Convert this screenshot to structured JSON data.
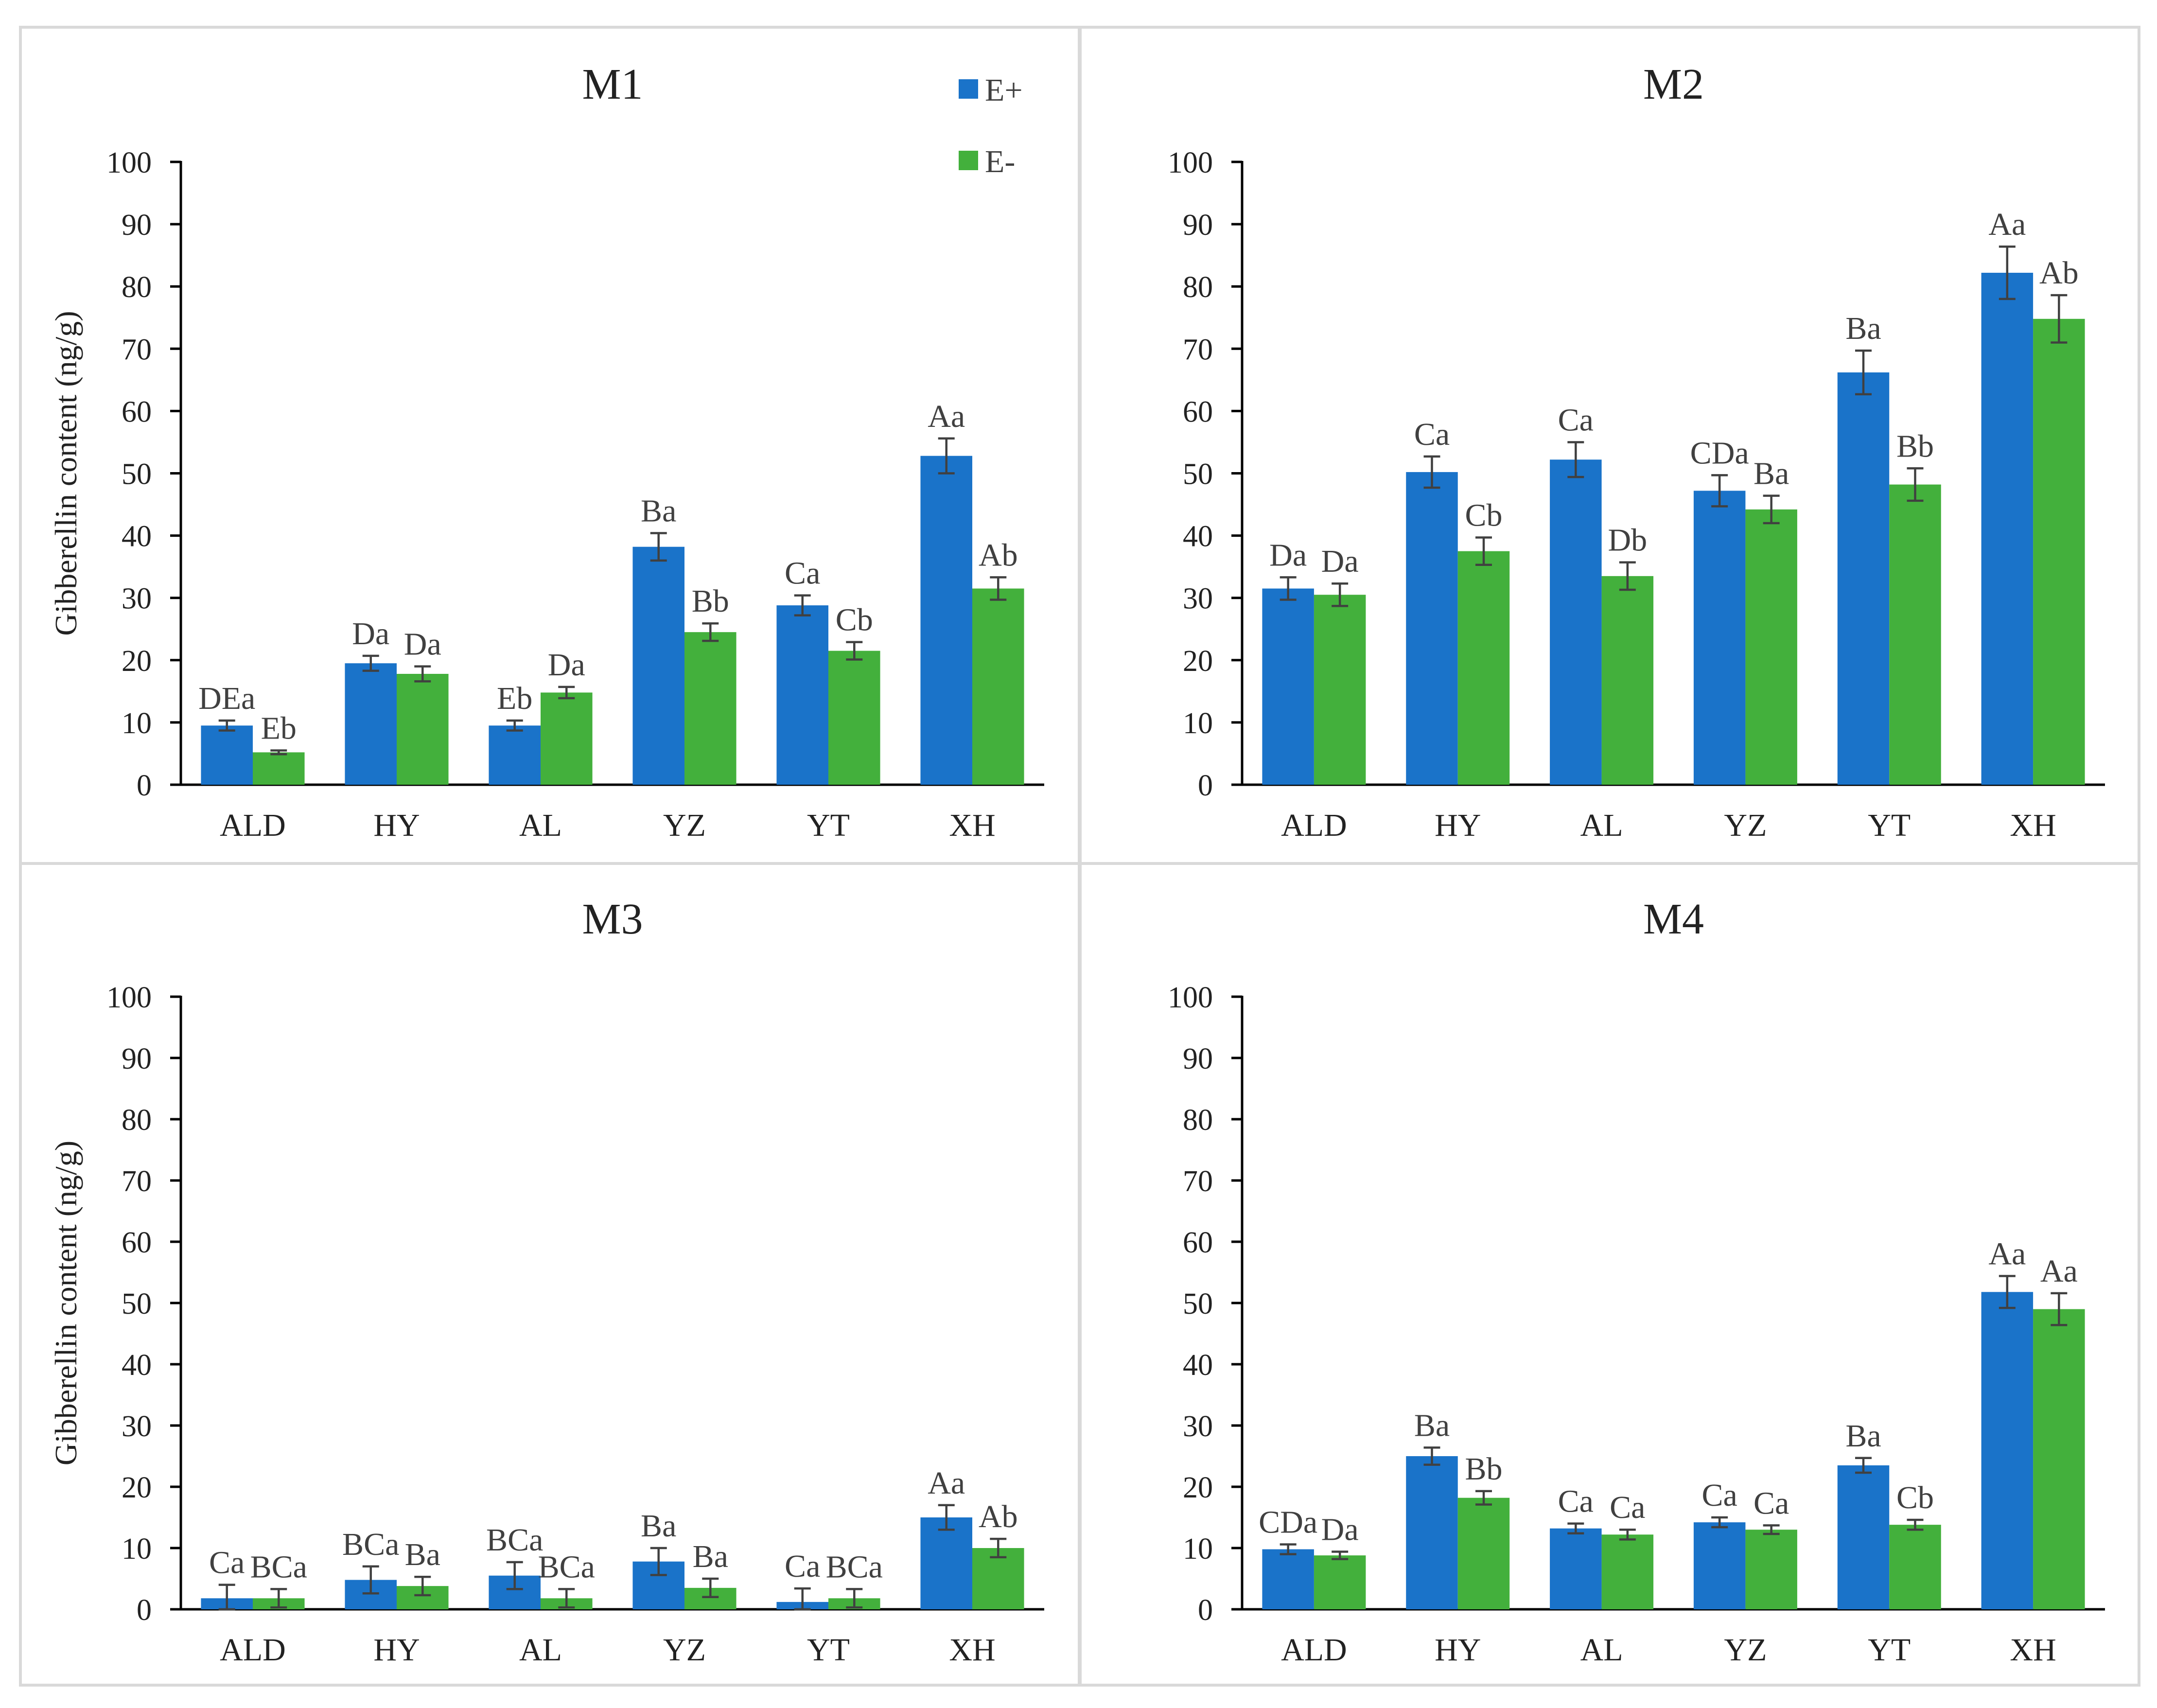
{
  "colors": {
    "E_plus": "#1a73c9",
    "E_minus": "#43b03c"
  },
  "legend": [
    {
      "label": "E+",
      "color": "#1a73c9"
    },
    {
      "label": "E-",
      "color": "#43b03c"
    }
  ],
  "chart_data": [
    {
      "type": "bar",
      "title": "M1",
      "ylabel": "Gibberellin content (ng/g)",
      "xlabel": "",
      "ylim": [
        0,
        100
      ],
      "yticks": [
        0,
        10,
        20,
        30,
        40,
        50,
        60,
        70,
        80,
        90,
        100
      ],
      "categories": [
        "ALD",
        "HY",
        "AL",
        "YZ",
        "YT",
        "XH"
      ],
      "legend_position": "top-right",
      "series": [
        {
          "name": "E+",
          "values": [
            9.5,
            19.5,
            9.5,
            38.2,
            28.8,
            52.8
          ],
          "errors": [
            0.8,
            1.2,
            0.8,
            2.2,
            1.6,
            2.8
          ],
          "labels": [
            "DEa",
            "Da",
            "Eb",
            "Ba",
            "Ca",
            "Aa"
          ]
        },
        {
          "name": "E-",
          "values": [
            5.2,
            17.8,
            14.8,
            24.5,
            21.5,
            31.5
          ],
          "errors": [
            0.3,
            1.2,
            0.9,
            1.4,
            1.4,
            1.8
          ],
          "labels": [
            "Eb",
            "Da",
            "Da",
            "Bb",
            "Cb",
            "Ab"
          ]
        }
      ]
    },
    {
      "type": "bar",
      "title": "M2",
      "ylabel": "",
      "xlabel": "",
      "ylim": [
        0,
        100
      ],
      "yticks": [
        0,
        10,
        20,
        30,
        40,
        50,
        60,
        70,
        80,
        90,
        100
      ],
      "categories": [
        "ALD",
        "HY",
        "AL",
        "YZ",
        "YT",
        "XH"
      ],
      "legend_position": "none",
      "series": [
        {
          "name": "E+",
          "values": [
            31.5,
            50.2,
            52.2,
            47.2,
            66.2,
            82.2
          ],
          "errors": [
            1.8,
            2.5,
            2.8,
            2.5,
            3.5,
            4.2
          ],
          "labels": [
            "Da",
            "Ca",
            "Ca",
            "CDa",
            "Ba",
            "Aa"
          ]
        },
        {
          "name": "E-",
          "values": [
            30.5,
            37.5,
            33.5,
            44.2,
            48.2,
            74.8
          ],
          "errors": [
            1.8,
            2.2,
            2.2,
            2.2,
            2.6,
            3.8
          ],
          "labels": [
            "Da",
            "Cb",
            "Db",
            "Ba",
            "Bb",
            "Ab"
          ]
        }
      ]
    },
    {
      "type": "bar",
      "title": "M3",
      "ylabel": "Gibberellin content (ng/g)",
      "xlabel": "",
      "ylim": [
        0,
        100
      ],
      "yticks": [
        0,
        10,
        20,
        30,
        40,
        50,
        60,
        70,
        80,
        90,
        100
      ],
      "categories": [
        "ALD",
        "HY",
        "AL",
        "YZ",
        "YT",
        "XH"
      ],
      "legend_position": "none",
      "series": [
        {
          "name": "E+",
          "values": [
            1.8,
            4.8,
            5.5,
            7.8,
            1.2,
            15.0
          ],
          "errors": [
            2.2,
            2.2,
            2.2,
            2.2,
            2.2,
            2.0
          ],
          "labels": [
            "Ca",
            "BCa",
            "BCa",
            "Ba",
            "Ca",
            "Aa"
          ]
        },
        {
          "name": "E-",
          "values": [
            1.8,
            3.8,
            1.8,
            3.5,
            1.8,
            10.0
          ],
          "errors": [
            1.5,
            1.5,
            1.5,
            1.5,
            1.5,
            1.5
          ],
          "labels": [
            "BCa",
            "Ba",
            "BCa",
            "Ba",
            "BCa",
            "Ab"
          ]
        }
      ]
    },
    {
      "type": "bar",
      "title": "M4",
      "ylabel": "",
      "xlabel": "",
      "ylim": [
        0,
        100
      ],
      "yticks": [
        0,
        10,
        20,
        30,
        40,
        50,
        60,
        70,
        80,
        90,
        100
      ],
      "categories": [
        "ALD",
        "HY",
        "AL",
        "YZ",
        "YT",
        "XH"
      ],
      "legend_position": "none",
      "series": [
        {
          "name": "E+",
          "values": [
            9.8,
            25.0,
            13.2,
            14.2,
            23.5,
            51.8
          ],
          "errors": [
            0.8,
            1.4,
            0.8,
            0.8,
            1.2,
            2.6
          ],
          "labels": [
            "CDa",
            "Ba",
            "Ca",
            "Ca",
            "Ba",
            "Aa"
          ]
        },
        {
          "name": "E-",
          "values": [
            8.8,
            18.2,
            12.2,
            13.0,
            13.8,
            49.0
          ],
          "errors": [
            0.6,
            1.1,
            0.8,
            0.7,
            0.8,
            2.6
          ],
          "labels": [
            "Da",
            "Bb",
            "Ca",
            "Ca",
            "Cb",
            "Aa"
          ]
        }
      ]
    }
  ]
}
